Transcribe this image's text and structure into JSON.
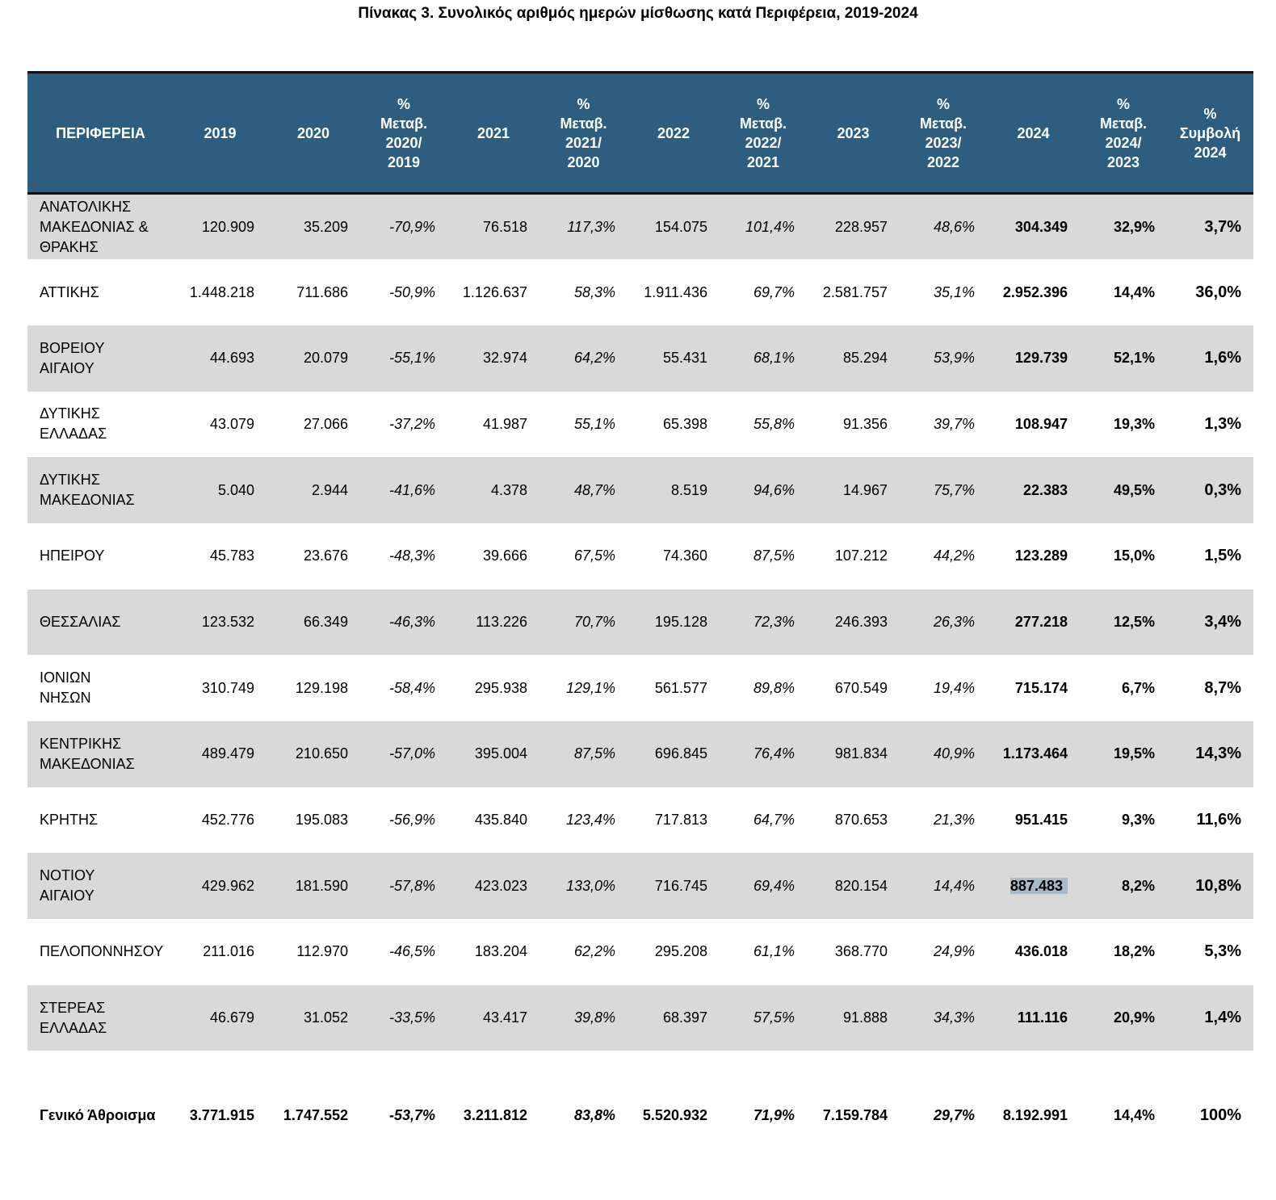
{
  "title": "Πίνακας 3. Συνολικός αριθμός ημερών μίσθωσης κατά Περιφέρεια, 2019-2024",
  "headers": [
    [
      "ΠΕΡΙΦΕΡΕΙΑ"
    ],
    [
      "2019"
    ],
    [
      "2020"
    ],
    [
      "%",
      "Μεταβ.",
      "2020/",
      "2019"
    ],
    [
      "2021"
    ],
    [
      "%",
      "Μεταβ.",
      "2021/",
      "2020"
    ],
    [
      "2022"
    ],
    [
      "%",
      "Μεταβ.",
      "2022/",
      "2021"
    ],
    [
      "2023"
    ],
    [
      "%",
      "Μεταβ.",
      "2023/",
      "2022"
    ],
    [
      "2024"
    ],
    [
      "%",
      "Μεταβ.",
      "2024/",
      "2023"
    ],
    [
      "%",
      "Συμβολή",
      "2024"
    ]
  ],
  "rows": [
    {
      "region": [
        "ΑΝΑΤΟΛΙΚΗΣ",
        "ΜΑΚΕΔΟΝΙΑΣ &",
        "ΘΡΑΚΗΣ"
      ],
      "v2019": "120.909",
      "v2020": "35.209",
      "p2020": "-70,9%",
      "v2021": "76.518",
      "p2021": "117,3%",
      "v2022": "154.075",
      "p2022": "101,4%",
      "v2023": "228.957",
      "p2023": "48,6%",
      "v2024": "304.349",
      "p2024": "32,9%",
      "share": "3,7%"
    },
    {
      "region": [
        "ΑΤΤΙΚΗΣ"
      ],
      "v2019": "1.448.218",
      "v2020": "711.686",
      "p2020": "-50,9%",
      "v2021": "1.126.637",
      "p2021": "58,3%",
      "v2022": "1.911.436",
      "p2022": "69,7%",
      "v2023": "2.581.757",
      "p2023": "35,1%",
      "v2024": "2.952.396",
      "p2024": "14,4%",
      "share": "36,0%"
    },
    {
      "region": [
        "ΒΟΡΕΙΟΥ",
        "ΑΙΓΑΙΟΥ"
      ],
      "v2019": "44.693",
      "v2020": "20.079",
      "p2020": "-55,1%",
      "v2021": "32.974",
      "p2021": "64,2%",
      "v2022": "55.431",
      "p2022": "68,1%",
      "v2023": "85.294",
      "p2023": "53,9%",
      "v2024": "129.739",
      "p2024": "52,1%",
      "share": "1,6%"
    },
    {
      "region": [
        "ΔΥΤΙΚΗΣ",
        "ΕΛΛΑΔΑΣ"
      ],
      "v2019": "43.079",
      "v2020": "27.066",
      "p2020": "-37,2%",
      "v2021": "41.987",
      "p2021": "55,1%",
      "v2022": "65.398",
      "p2022": "55,8%",
      "v2023": "91.356",
      "p2023": "39,7%",
      "v2024": "108.947",
      "p2024": "19,3%",
      "share": "1,3%"
    },
    {
      "region": [
        "ΔΥΤΙΚΗΣ",
        "ΜΑΚΕΔΟΝΙΑΣ"
      ],
      "v2019": "5.040",
      "v2020": "2.944",
      "p2020": "-41,6%",
      "v2021": "4.378",
      "p2021": "48,7%",
      "v2022": "8.519",
      "p2022": "94,6%",
      "v2023": "14.967",
      "p2023": "75,7%",
      "v2024": "22.383",
      "p2024": "49,5%",
      "share": "0,3%"
    },
    {
      "region": [
        "ΗΠΕΙΡΟΥ"
      ],
      "v2019": "45.783",
      "v2020": "23.676",
      "p2020": "-48,3%",
      "v2021": "39.666",
      "p2021": "67,5%",
      "v2022": "74.360",
      "p2022": "87,5%",
      "v2023": "107.212",
      "p2023": "44,2%",
      "v2024": "123.289",
      "p2024": "15,0%",
      "share": "1,5%"
    },
    {
      "region": [
        "ΘΕΣΣΑΛΙΑΣ"
      ],
      "v2019": "123.532",
      "v2020": "66.349",
      "p2020": "-46,3%",
      "v2021": "113.226",
      "p2021": "70,7%",
      "v2022": "195.128",
      "p2022": "72,3%",
      "v2023": "246.393",
      "p2023": "26,3%",
      "v2024": "277.218",
      "p2024": "12,5%",
      "share": "3,4%"
    },
    {
      "region": [
        "ΙΟΝΙΩΝ",
        "ΝΗΣΩΝ"
      ],
      "v2019": "310.749",
      "v2020": "129.198",
      "p2020": "-58,4%",
      "v2021": "295.938",
      "p2021": "129,1%",
      "v2022": "561.577",
      "p2022": "89,8%",
      "v2023": "670.549",
      "p2023": "19,4%",
      "v2024": "715.174",
      "p2024": "6,7%",
      "share": "8,7%"
    },
    {
      "region": [
        "ΚΕΝΤΡΙΚΗΣ",
        "ΜΑΚΕΔΟΝΙΑΣ"
      ],
      "v2019": "489.479",
      "v2020": "210.650",
      "p2020": "-57,0%",
      "v2021": "395.004",
      "p2021": "87,5%",
      "v2022": "696.845",
      "p2022": "76,4%",
      "v2023": "981.834",
      "p2023": "40,9%",
      "v2024": "1.173.464",
      "p2024": "19,5%",
      "share": "14,3%"
    },
    {
      "region": [
        "ΚΡΗΤΗΣ"
      ],
      "v2019": "452.776",
      "v2020": "195.083",
      "p2020": "-56,9%",
      "v2021": "435.840",
      "p2021": "123,4%",
      "v2022": "717.813",
      "p2022": "64,7%",
      "v2023": "870.653",
      "p2023": "21,3%",
      "v2024": "951.415",
      "p2024": "9,3%",
      "share": "11,6%"
    },
    {
      "region": [
        "ΝΟΤΙΟΥ",
        "ΑΙΓΑΙΟΥ"
      ],
      "v2019": "429.962",
      "v2020": "181.590",
      "p2020": "-57,8%",
      "v2021": "423.023",
      "p2021": "133,0%",
      "v2022": "716.745",
      "p2022": "69,4%",
      "v2023": "820.154",
      "p2023": "14,4%",
      "v2024": "887.483",
      "p2024": "8,2%",
      "share": "10,8%",
      "highlight": true
    },
    {
      "region": [
        "ΠΕΛΟΠΟΝΝΗΣΟΥ"
      ],
      "v2019": "211.016",
      "v2020": "112.970",
      "p2020": "-46,5%",
      "v2021": "183.204",
      "p2021": "62,2%",
      "v2022": "295.208",
      "p2022": "61,1%",
      "v2023": "368.770",
      "p2023": "24,9%",
      "v2024": "436.018",
      "p2024": "18,2%",
      "share": "5,3%"
    },
    {
      "region": [
        "ΣΤΕΡΕΑΣ",
        "ΕΛΛΑΔΑΣ"
      ],
      "v2019": "46.679",
      "v2020": "31.052",
      "p2020": "-33,5%",
      "v2021": "43.417",
      "p2021": "39,8%",
      "v2022": "68.397",
      "p2022": "57,5%",
      "v2023": "91.888",
      "p2023": "34,3%",
      "v2024": "111.116",
      "p2024": "20,9%",
      "share": "1,4%"
    }
  ],
  "total": {
    "region": [
      "Γενικό Άθροισμα"
    ],
    "v2019": "3.771.915",
    "v2020": "1.747.552",
    "p2020": "-53,7%",
    "v2021": "3.211.812",
    "p2021": "83,8%",
    "v2022": "5.520.932",
    "p2022": "71,9%",
    "v2023": "7.159.784",
    "p2023": "29,7%",
    "v2024": "8.192.991",
    "p2024": "14,4%",
    "share": "100%"
  },
  "colors": {
    "header_bg": "#2e5e7f",
    "row_shade": "#d9d9d9",
    "selection": "#a9b9c9"
  }
}
